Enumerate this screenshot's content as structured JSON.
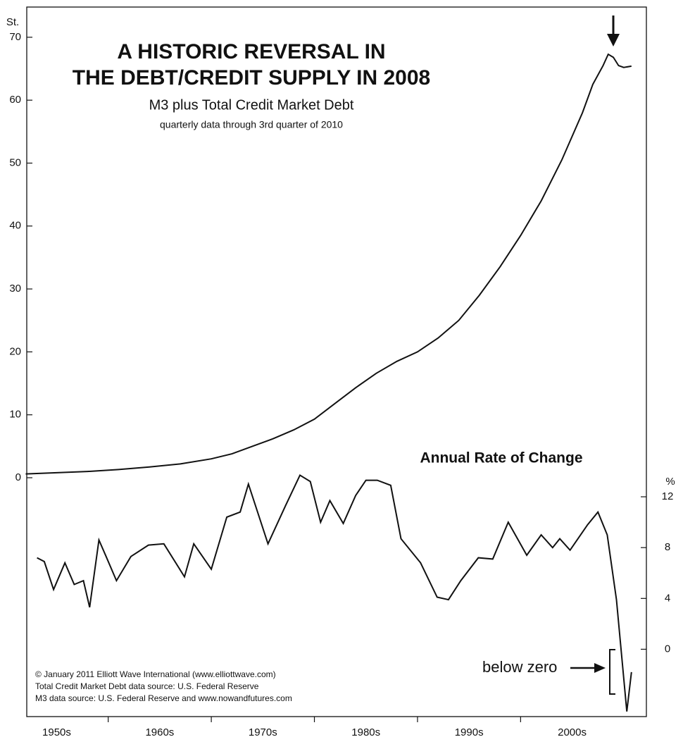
{
  "chart_data": [
    {
      "type": "line",
      "title": "A HISTORIC REVERSAL IN\nTHE DEBT/CREDIT SUPPLY IN 2008",
      "subtitle": "M3 plus Total Credit Market Debt",
      "note": "quarterly data through 3rd quarter of 2010",
      "ylabel": "St.",
      "xlim": [
        1952.1,
        2012.2
      ],
      "ylim": [
        0,
        74.8
      ],
      "yticks": [
        0,
        10,
        20,
        30,
        40,
        50,
        60,
        70
      ],
      "series": [
        {
          "color": "#111111",
          "x": [
            1952,
            1955,
            1958,
            1961,
            1964,
            1967,
            1970,
            1972,
            1974,
            1976,
            1978,
            1980,
            1982,
            1984,
            1986,
            1988,
            1990,
            1992,
            1994,
            1996,
            1998,
            2000,
            2002,
            2004,
            2006,
            2007,
            2008,
            2008.5,
            2009,
            2009.5,
            2010,
            2010.75
          ],
          "values": [
            0.6,
            0.8,
            1.0,
            1.3,
            1.7,
            2.2,
            3.0,
            3.8,
            5.0,
            6.2,
            7.6,
            9.3,
            11.8,
            14.3,
            16.6,
            18.5,
            20.0,
            22.2,
            25.0,
            29.0,
            33.5,
            38.5,
            44.0,
            50.5,
            58.0,
            62.5,
            65.5,
            67.3,
            66.8,
            65.5,
            65.2,
            65.4
          ]
        }
      ]
    },
    {
      "type": "line",
      "title": "Annual Rate of Change",
      "ylabel": "%",
      "annotation": "below zero",
      "notes": [
        "© January 2011 Elliott Wave International (www.elliottwave.com)",
        "Total Credit Market Debt data source: U.S. Federal Reserve",
        "M3 data source: U.S. Federal Reserve and www.nowandfutures.com"
      ],
      "xlim": [
        1952.1,
        2012.2
      ],
      "xticks": [
        {
          "value": 1955,
          "label": "1950s"
        },
        {
          "value": 1965,
          "label": "1960s"
        },
        {
          "value": 1975,
          "label": "1970s"
        },
        {
          "value": 1985,
          "label": "1980s"
        },
        {
          "value": 1995,
          "label": "1990s"
        },
        {
          "value": 2005,
          "label": "2000s"
        }
      ],
      "ylim": [
        -5.3,
        13.5
      ],
      "yticks": [
        0,
        4,
        8,
        12
      ],
      "series": [
        {
          "color": "#111111",
          "x": [
            1953.1,
            1953.8,
            1954.7,
            1955.8,
            1956.7,
            1957.6,
            1958.2,
            1959.1,
            1959.8,
            1960.8,
            1962.2,
            1963.9,
            1965.4,
            1967.4,
            1968.3,
            1970,
            1971.5,
            1972.8,
            1973.6,
            1975.5,
            1977.2,
            1978.6,
            1979.6,
            1980.6,
            1981.5,
            1982.8,
            1984,
            1985,
            1986.1,
            1987.4,
            1988.4,
            1990.3,
            1991.9,
            1993,
            1994.2,
            1995.9,
            1997.3,
            1998.8,
            2000.6,
            2002,
            2003.1,
            2003.8,
            2004.8,
            2006.5,
            2007.5,
            2008.4,
            2009.3,
            2010.3,
            2010.75
          ],
          "values": [
            7.2,
            6.9,
            4.7,
            6.8,
            5.1,
            5.4,
            3.3,
            8.6,
            7.3,
            5.4,
            7.3,
            8.2,
            8.3,
            5.7,
            8.3,
            6.3,
            10.4,
            10.8,
            13.0,
            8.3,
            11.3,
            13.7,
            13.2,
            10.0,
            11.7,
            9.9,
            12.1,
            13.3,
            13.3,
            12.9,
            8.7,
            6.8,
            4.1,
            3.9,
            5.4,
            7.2,
            7.1,
            10.0,
            7.4,
            9.0,
            8.0,
            8.7,
            7.8,
            9.8,
            10.8,
            9.0,
            3.9,
            -4.9,
            -1.8
          ]
        }
      ]
    }
  ]
}
